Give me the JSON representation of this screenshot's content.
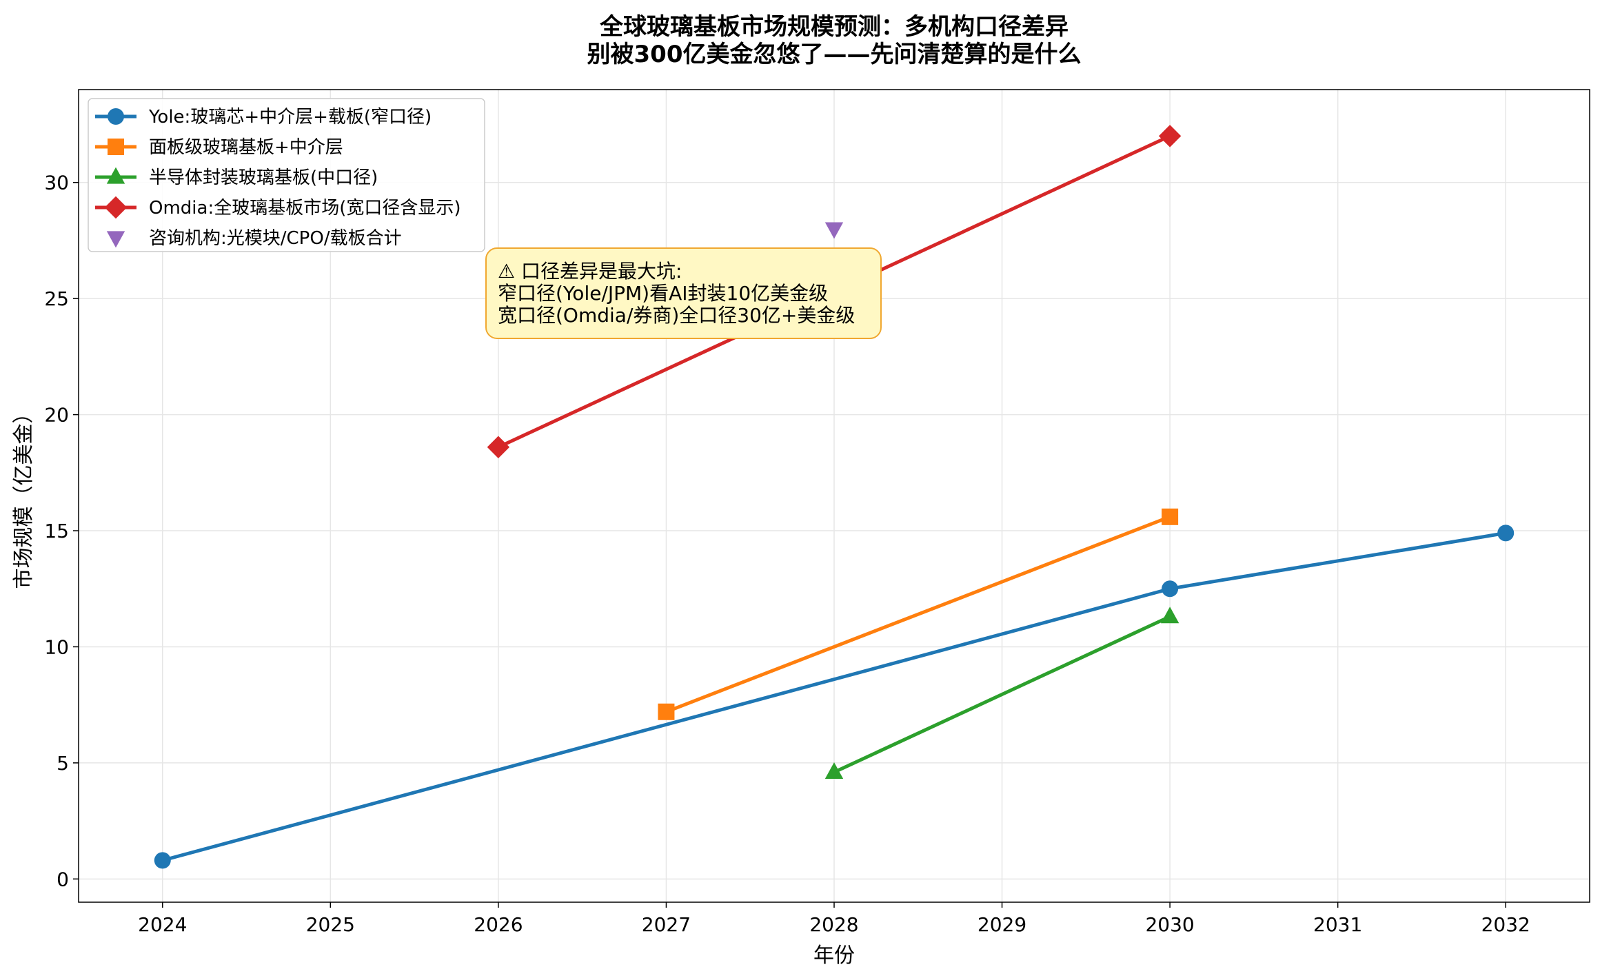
{
  "chart_data": {
    "type": "line",
    "title_lines": [
      "全球玻璃基板市场规模预测：多机构口径差异",
      "别被300亿美金忽悠了——先问清楚算的是什么"
    ],
    "xlabel": "年份",
    "ylabel": "市场规模（亿美金）",
    "xlim": [
      2023.5,
      2032.5
    ],
    "ylim": [
      -1,
      34
    ],
    "xticks": [
      2024,
      2025,
      2026,
      2027,
      2028,
      2029,
      2030,
      2031,
      2032
    ],
    "yticks": [
      0,
      5,
      10,
      15,
      20,
      25,
      30
    ],
    "grid": true,
    "legend_position": "upper-left",
    "series": [
      {
        "name": "Yole:玻璃芯+中介层+载板(窄口径)",
        "color": "#1f77b4",
        "marker": "circle",
        "line": true,
        "points": [
          {
            "x": 2024,
            "y": 0.8
          },
          {
            "x": 2030,
            "y": 12.5
          },
          {
            "x": 2032,
            "y": 14.9
          }
        ]
      },
      {
        "name": "面板级玻璃基板+中介层",
        "color": "#ff7f0e",
        "marker": "square",
        "line": true,
        "points": [
          {
            "x": 2027,
            "y": 7.2
          },
          {
            "x": 2030,
            "y": 15.6
          }
        ]
      },
      {
        "name": "半导体封装玻璃基板(中口径)",
        "color": "#2ca02c",
        "marker": "triangle-up",
        "line": true,
        "points": [
          {
            "x": 2028,
            "y": 4.6
          },
          {
            "x": 2030,
            "y": 11.3
          }
        ]
      },
      {
        "name": "Omdia:全玻璃基板市场(宽口径含显示)",
        "color": "#d62728",
        "marker": "diamond",
        "line": true,
        "points": [
          {
            "x": 2026,
            "y": 18.6
          },
          {
            "x": 2030,
            "y": 32.0
          }
        ]
      },
      {
        "name": "咨询机构:光模块/CPO/载板合计",
        "color": "#9467bd",
        "marker": "triangle-down",
        "line": false,
        "points": [
          {
            "x": 2028,
            "y": 28.0
          }
        ]
      }
    ],
    "annotation": {
      "lines": [
        "⚠ 口径差异是最大坑:",
        "窄口径(Yole/JPM)看AI封装10亿美金级",
        "宽口径(Omdia/券商)全口径30亿+美金级"
      ],
      "background": "#fff8c4",
      "border": "#f0a830"
    }
  }
}
